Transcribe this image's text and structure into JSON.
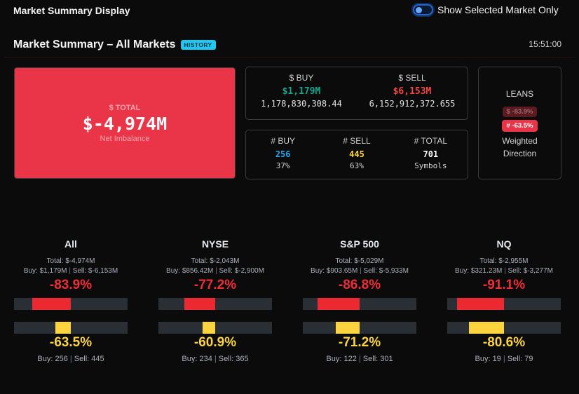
{
  "app": {
    "title": "Market Summary Display"
  },
  "toggle": {
    "label": "Show Selected Market Only",
    "checked": false
  },
  "header": {
    "title": "Market Summary – All Markets",
    "badge": "HISTORY",
    "time": "15:51:00"
  },
  "total_card": {
    "label": "$ TOTAL",
    "value": "$-4,974M",
    "sub": "Net Imbalance",
    "color": "#ea3548"
  },
  "dollar_card": {
    "buy": {
      "label": "$ BUY",
      "value": "$1,179M",
      "raw": "1,178,830,308.44",
      "color": "#14a58a"
    },
    "sell": {
      "label": "$ SELL",
      "value": "$6,153M",
      "raw": "6,152,912,372.655",
      "color": "#f0473f"
    }
  },
  "count_card": {
    "buy": {
      "label": "# BUY",
      "value": "256",
      "sub": "37%",
      "color": "#22a8ea"
    },
    "sell": {
      "label": "# SELL",
      "value": "445",
      "sub": "63%",
      "color": "#fdd43e"
    },
    "total": {
      "label": "# TOTAL",
      "value": "701",
      "sub": "Symbols",
      "color": "#ffffff"
    }
  },
  "leans": {
    "title": "LEANS",
    "dollar_pill": "$ -83.9%",
    "count_pill": "# -63.5%",
    "sub_line1": "Weighted",
    "sub_line2": "Direction"
  },
  "markets": [
    {
      "name": "All",
      "total": "Total: $-4,974M",
      "buy": "Buy: $1,179M",
      "sell": "Sell: $-6,153M",
      "dollar_pct": "-83.9%",
      "dollar_pct_value": -83.9,
      "count_pct": "-63.5%",
      "count_pct_value": -63.5,
      "buy_count": "Buy: 256",
      "sell_count": "Sell: 445"
    },
    {
      "name": "NYSE",
      "total": "Total: $-2,043M",
      "buy": "Buy: $856.42M",
      "sell": "Sell: $-2,900M",
      "dollar_pct": "-77.2%",
      "dollar_pct_value": -77.2,
      "count_pct": "-60.9%",
      "count_pct_value": -60.9,
      "buy_count": "Buy: 234",
      "sell_count": "Sell: 365"
    },
    {
      "name": "S&P 500",
      "total": "Total: $-5,029M",
      "buy": "Buy: $903.65M",
      "sell": "Sell: $-5,933M",
      "dollar_pct": "-86.8%",
      "dollar_pct_value": -86.8,
      "count_pct": "-71.2%",
      "count_pct_value": -71.2,
      "buy_count": "Buy: 122",
      "sell_count": "Sell: 301"
    },
    {
      "name": "NQ",
      "total": "Total: $-2,955M",
      "buy": "Buy: $321.23M",
      "sell": "Sell: $-3,277M",
      "dollar_pct": "-91.1%",
      "dollar_pct_value": -91.1,
      "count_pct": "-80.6%",
      "count_pct_value": -80.6,
      "buy_count": "Buy: 19",
      "sell_count": "Sell: 79"
    }
  ]
}
